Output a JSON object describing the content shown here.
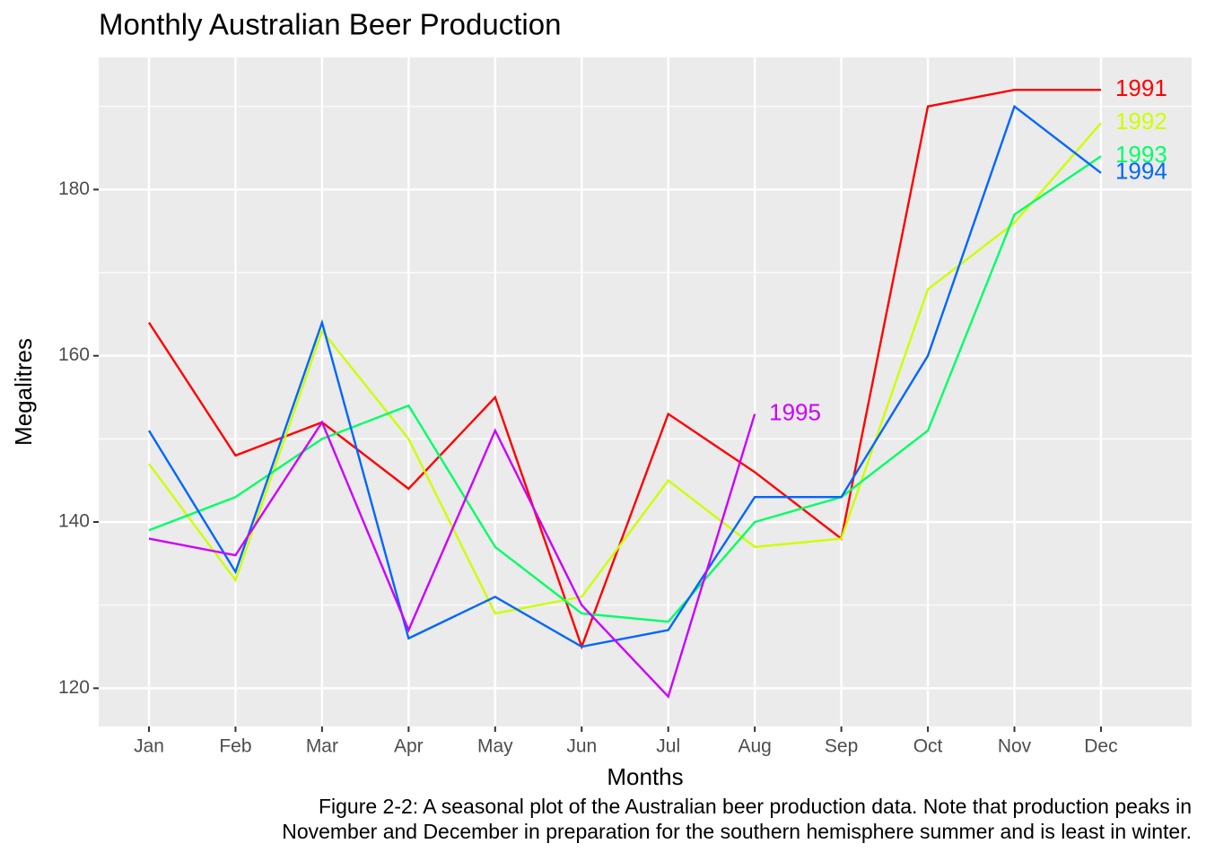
{
  "chart_data": {
    "type": "line",
    "title": "Monthly Australian Beer Production",
    "x_label": "Months",
    "y_label": "Megalitres",
    "caption": [
      "Figure 2-2: A seasonal plot of the Australian beer production data. Note that production peaks in",
      "November and December in preparation for the southern hemisphere summer and is least in winter."
    ],
    "categories": [
      "Jan",
      "Feb",
      "Mar",
      "Apr",
      "May",
      "Jun",
      "Jul",
      "Aug",
      "Sep",
      "Oct",
      "Nov",
      "Dec"
    ],
    "series": [
      {
        "name": "1991",
        "color": "#ff0000",
        "values": [
          164,
          148,
          152,
          144,
          155,
          125,
          153,
          146,
          138,
          190,
          192,
          192
        ]
      },
      {
        "name": "1992",
        "color": "#ccff00",
        "values": [
          147,
          133,
          163,
          150,
          129,
          131,
          145,
          137,
          138,
          168,
          176,
          188
        ]
      },
      {
        "name": "1993",
        "color": "#00ff66",
        "values": [
          139,
          143,
          150,
          154,
          137,
          129,
          128,
          140,
          143,
          151,
          177,
          184
        ]
      },
      {
        "name": "1994",
        "color": "#0066ff",
        "values": [
          151,
          134,
          164,
          126,
          131,
          125,
          127,
          143,
          143,
          160,
          190,
          182
        ]
      },
      {
        "name": "1995",
        "color": "#cc00ff",
        "values": [
          138,
          136,
          152,
          127,
          151,
          130,
          119,
          153,
          null,
          null,
          null,
          null
        ]
      }
    ],
    "ylim": [
      115.4,
      195.9
    ],
    "yticks": [
      120,
      140,
      160,
      180
    ],
    "y_minor_grid": [
      130,
      150,
      170,
      190
    ],
    "grid": true
  }
}
